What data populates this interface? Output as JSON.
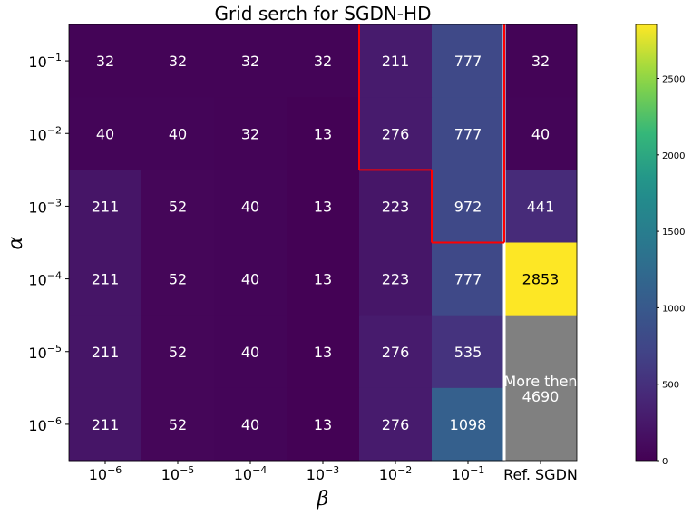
{
  "chart_data": {
    "type": "heatmap",
    "title": "Grid serch for SGDN-HD",
    "xlabel": "β",
    "ylabel": "α",
    "x_ticks": [
      {
        "base": "10",
        "exp": "−6"
      },
      {
        "base": "10",
        "exp": "−5"
      },
      {
        "base": "10",
        "exp": "−4"
      },
      {
        "base": "10",
        "exp": "−3"
      },
      {
        "base": "10",
        "exp": "−2"
      },
      {
        "base": "10",
        "exp": "−1"
      },
      {
        "text": "Ref. SGDN"
      }
    ],
    "y_ticks": [
      {
        "base": "10",
        "exp": "−1"
      },
      {
        "base": "10",
        "exp": "−2"
      },
      {
        "base": "10",
        "exp": "−3"
      },
      {
        "base": "10",
        "exp": "−4"
      },
      {
        "base": "10",
        "exp": "−5"
      },
      {
        "base": "10",
        "exp": "−6"
      }
    ],
    "cells": [
      [
        32,
        32,
        32,
        32,
        211,
        777,
        32
      ],
      [
        40,
        40,
        32,
        13,
        276,
        777,
        40
      ],
      [
        211,
        52,
        40,
        13,
        223,
        972,
        441
      ],
      [
        211,
        52,
        40,
        13,
        223,
        777,
        2853
      ],
      [
        211,
        52,
        40,
        13,
        276,
        535,
        null
      ],
      [
        211,
        52,
        40,
        13,
        276,
        1098,
        null
      ]
    ],
    "cell_fill": [
      [
        32,
        32,
        32,
        32,
        276,
        777,
        32
      ],
      [
        40,
        40,
        32,
        13,
        276,
        777,
        40
      ],
      [
        211,
        52,
        40,
        13,
        223,
        777,
        441
      ],
      [
        211,
        52,
        40,
        13,
        223,
        777,
        2853
      ],
      [
        211,
        52,
        40,
        13,
        276,
        535,
        null
      ],
      [
        211,
        52,
        40,
        13,
        276,
        1098,
        null
      ]
    ],
    "highlighted_cells": [
      [
        0,
        4
      ],
      [
        0,
        5
      ],
      [
        1,
        4
      ],
      [
        1,
        5
      ],
      [
        2,
        5
      ]
    ],
    "highlight_color": "#ff0000",
    "missing_label": [
      "More then",
      "4690"
    ],
    "missing_color": "#808080",
    "separator_color": "#ffffff",
    "colorscale": "viridis",
    "color_range": [
      0,
      2853
    ],
    "colorbar_ticks": [
      0,
      500,
      1000,
      1500,
      2000,
      2500
    ]
  }
}
